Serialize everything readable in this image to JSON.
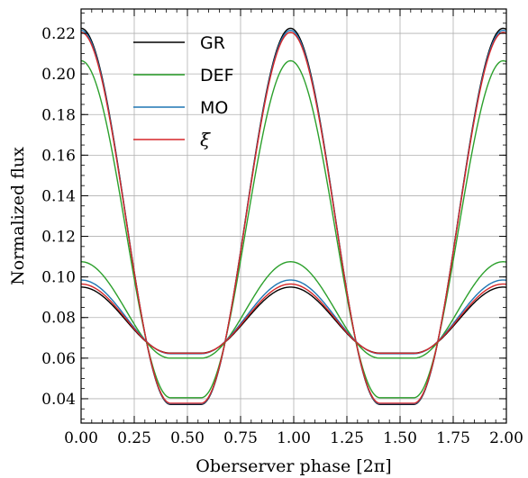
{
  "chart_data": {
    "type": "line",
    "xlabel": "Oberserver phase [2π]",
    "ylabel": "Normalized flux",
    "xlim": [
      0.0,
      2.0
    ],
    "ylim": [
      0.028,
      0.232
    ],
    "x_ticks": [
      "0.00",
      "0.25",
      "0.50",
      "0.75",
      "1.00",
      "1.25",
      "1.50",
      "1.75",
      "2.00"
    ],
    "y_ticks": [
      "0.04",
      "0.06",
      "0.08",
      "0.10",
      "0.12",
      "0.14",
      "0.16",
      "0.18",
      "0.20",
      "0.22"
    ],
    "grid": true,
    "legend_position": "top-left",
    "series": [
      {
        "name": "GR",
        "color": "#000000",
        "profile": "high",
        "peak": 0.2225,
        "plateau": 0.0372,
        "plateau_width": 0.16,
        "rise_half_width": 0.3
      },
      {
        "name": "DEF",
        "color": "#2ca02c",
        "profile": "high",
        "peak": 0.2065,
        "plateau": 0.0405,
        "plateau_width": 0.16,
        "rise_half_width": 0.3
      },
      {
        "name": "MO",
        "color": "#1f77b4",
        "profile": "high",
        "peak": 0.2215,
        "plateau": 0.0375,
        "plateau_width": 0.16,
        "rise_half_width": 0.3
      },
      {
        "name": "ξ",
        "color": "#d62728",
        "profile": "high",
        "peak": 0.2205,
        "plateau": 0.0378,
        "plateau_width": 0.16,
        "rise_half_width": 0.3
      },
      {
        "name": "",
        "color": "#000000",
        "profile": "low",
        "peak": 0.095,
        "plateau": 0.0625,
        "plateau_width": 0.16,
        "rise_half_width": 0.3
      },
      {
        "name": "",
        "color": "#2ca02c",
        "profile": "low",
        "peak": 0.1075,
        "plateau": 0.06,
        "plateau_width": 0.16,
        "rise_half_width": 0.3
      },
      {
        "name": "",
        "color": "#1f77b4",
        "profile": "low",
        "peak": 0.0985,
        "plateau": 0.0622,
        "plateau_width": 0.16,
        "rise_half_width": 0.3
      },
      {
        "name": "",
        "color": "#d62728",
        "profile": "low",
        "peak": 0.0965,
        "plateau": 0.0624,
        "plateau_width": 0.16,
        "rise_half_width": 0.3
      }
    ],
    "peak_phases": [
      0.0,
      0.985,
      1.985
    ],
    "plateau_centers": [
      0.485,
      1.485
    ]
  }
}
